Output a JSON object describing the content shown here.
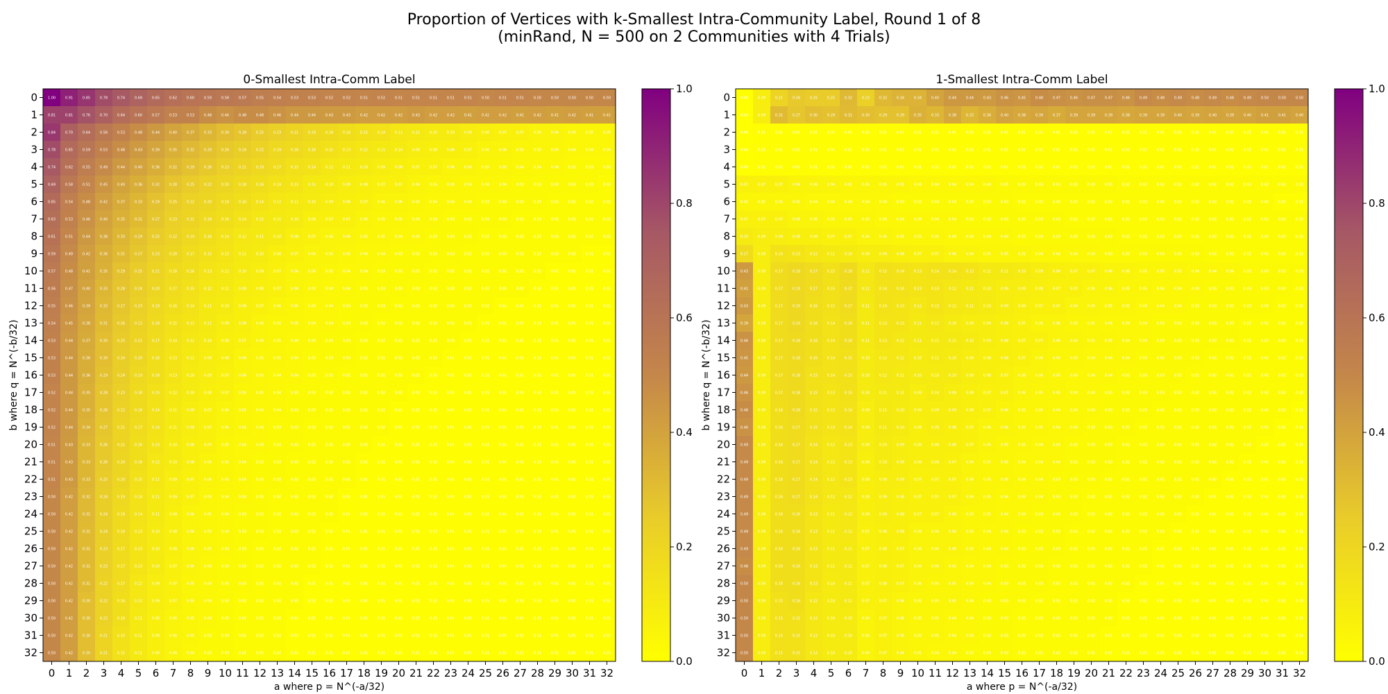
{
  "figure": {
    "title_line1": "Proportion of Vertices with k-Smallest Intra-Community Label, Round 1 of 8",
    "title_line2": "(minRand, N = 500 on 2 Communities with 4 Trials)"
  },
  "colors": {
    "colormap": [
      "#ffff00",
      "#e9cc2a",
      "#c4874a",
      "#a65865",
      "#800080"
    ],
    "label_text": "#ffffff"
  },
  "chart_data": [
    {
      "type": "heatmap",
      "title": "0-Smallest Intra-Comm Label",
      "xlabel": "a where p = N^(-a/32)",
      "ylabel": "b where q = N^(-b/32)",
      "x_ticks": [
        "0",
        "1",
        "2",
        "3",
        "4",
        "5",
        "6",
        "7",
        "8",
        "9",
        "10",
        "11",
        "12",
        "13",
        "14",
        "15",
        "16",
        "17",
        "18",
        "19",
        "20",
        "21",
        "22",
        "23",
        "24",
        "25",
        "26",
        "27",
        "28",
        "29",
        "30",
        "31",
        "32"
      ],
      "y_ticks": [
        "0",
        "1",
        "2",
        "3",
        "4",
        "5",
        "6",
        "7",
        "8",
        "9",
        "10",
        "11",
        "12",
        "13",
        "14",
        "15",
        "16",
        "17",
        "18",
        "19",
        "20",
        "21",
        "22",
        "23",
        "24",
        "25",
        "26",
        "27",
        "28",
        "29",
        "30",
        "31",
        "32"
      ],
      "colorbar": {
        "range": [
          0.0,
          1.0
        ],
        "ticks": [
          "0.0",
          "0.2",
          "0.4",
          "0.6",
          "0.8",
          "1.0"
        ]
      },
      "first_row": [
        1.0,
        0.91,
        0.85,
        0.78,
        0.74,
        0.69,
        0.65,
        0.62,
        0.6,
        0.59,
        0.58,
        0.57,
        0.55,
        0.54,
        0.53,
        0.53,
        0.52,
        0.52,
        0.51,
        0.52,
        0.51,
        0.51,
        0.51,
        0.51,
        0.51,
        0.5,
        0.51,
        0.51,
        0.5,
        0.5,
        0.5,
        0.5,
        0.5
      ],
      "first_col": [
        1.0,
        0.81,
        0.84,
        0.78,
        0.74,
        0.69,
        0.65,
        0.63,
        0.61,
        0.59,
        0.57,
        0.56,
        0.55,
        0.54,
        0.53,
        0.53,
        0.53,
        0.52,
        0.52,
        0.52,
        0.51,
        0.51,
        0.51,
        0.5,
        0.5,
        0.5,
        0.5,
        0.5,
        0.5,
        0.5,
        0.5,
        0.5,
        0.5
      ],
      "second_row": [
        0.81,
        0.81,
        0.76,
        0.7,
        0.64,
        0.6,
        0.57,
        0.53,
        0.53,
        0.48,
        0.46,
        0.48,
        0.48,
        0.46,
        0.44,
        0.44,
        0.43,
        0.43,
        0.42,
        0.42,
        0.42,
        0.43,
        0.42,
        0.42,
        0.41,
        0.42,
        0.42,
        0.41,
        0.42,
        0.41,
        0.42,
        0.41,
        0.41
      ]
    },
    {
      "type": "heatmap",
      "title": "1-Smallest Intra-Comm Label",
      "xlabel": "a where p = N^(-a/32)",
      "ylabel": "b where q = N^(-b/32)",
      "x_ticks": [
        "0",
        "1",
        "2",
        "3",
        "4",
        "5",
        "6",
        "7",
        "8",
        "9",
        "10",
        "11",
        "12",
        "13",
        "14",
        "15",
        "16",
        "17",
        "18",
        "19",
        "20",
        "21",
        "22",
        "23",
        "24",
        "25",
        "26",
        "27",
        "28",
        "29",
        "30",
        "31",
        "32"
      ],
      "y_ticks": [
        "0",
        "1",
        "2",
        "3",
        "4",
        "5",
        "6",
        "7",
        "8",
        "9",
        "10",
        "11",
        "12",
        "13",
        "14",
        "15",
        "16",
        "17",
        "18",
        "19",
        "20",
        "21",
        "22",
        "23",
        "24",
        "25",
        "26",
        "27",
        "28",
        "29",
        "30",
        "31",
        "32"
      ],
      "colorbar": {
        "range": [
          0.0,
          1.0
        ],
        "ticks": [
          "0.0",
          "0.2",
          "0.4",
          "0.6",
          "0.8",
          "1.0"
        ]
      },
      "first_row": [
        0.0,
        0.09,
        0.21,
        0.26,
        0.25,
        0.25,
        0.32,
        0.23,
        0.32,
        0.34,
        0.34,
        0.4,
        0.44,
        0.44,
        0.43,
        0.46,
        0.45,
        0.48,
        0.47,
        0.46,
        0.47,
        0.47,
        0.46,
        0.49,
        0.48,
        0.49,
        0.48,
        0.49,
        0.48,
        0.49,
        0.5,
        0.5,
        0.5
      ],
      "first_col": [
        0.0,
        0.0,
        0.0,
        0.0,
        0.0,
        0.07,
        0.05,
        0.07,
        0.1,
        0.17,
        0.43,
        0.41,
        0.43,
        0.39,
        0.46,
        0.45,
        0.44,
        0.46,
        0.48,
        0.46,
        0.49,
        0.49,
        0.49,
        0.49,
        0.49,
        0.49,
        0.49,
        0.48,
        0.5,
        0.5,
        0.5,
        0.5,
        0.5
      ],
      "second_row": [
        0.0,
        0.09,
        0.31,
        0.27,
        0.3,
        0.29,
        0.31,
        0.3,
        0.29,
        0.29,
        0.35,
        0.33,
        0.38,
        0.33,
        0.36,
        0.4,
        0.38,
        0.39,
        0.37,
        0.39,
        0.39,
        0.39,
        0.38,
        0.39,
        0.39,
        0.4,
        0.39,
        0.4,
        0.39,
        0.4,
        0.41,
        0.41,
        0.4
      ]
    }
  ]
}
